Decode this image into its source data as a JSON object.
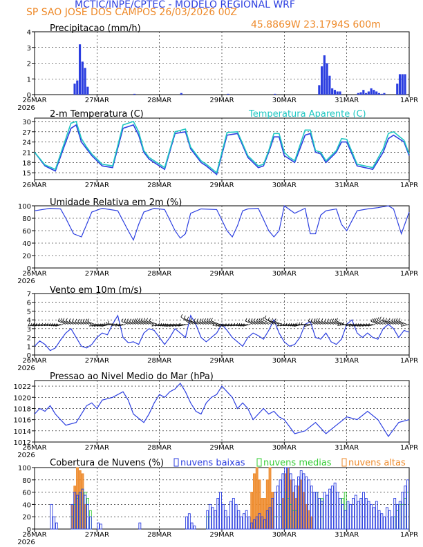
{
  "header": {
    "title": "MCTIC/INPE/CPTEC - MODELO REGIONAL WRF",
    "location_date": "SP SAO JOSE DOS CAMPOS   26/03/2026 00Z",
    "coords": "45.8869W 23.1794S 600m"
  },
  "colors": {
    "blue": "#2b3ee0",
    "cyan": "#1fc7c2",
    "green": "#33cc33",
    "orange": "#ee8a2a",
    "black": "#000000"
  },
  "chart_data": [
    {
      "id": "precip",
      "type": "bar",
      "title": "Precipitacao (mm/h)",
      "ylim": [
        0,
        4
      ],
      "yticks": [
        "0",
        "1",
        "2",
        "3",
        "4"
      ],
      "xlabels": [
        "26MAR",
        "27MAR",
        "28MAR",
        "29MAR",
        "30MAR",
        "31MAR",
        "1APR"
      ],
      "year": "2026",
      "x_hours": [
        15,
        16,
        17,
        18,
        19,
        20,
        38,
        56,
        74,
        92,
        109,
        110,
        111,
        112,
        113,
        114,
        115,
        116,
        117,
        124,
        125,
        126,
        127,
        128,
        129,
        130,
        131,
        132,
        133,
        134,
        139,
        140,
        141,
        142
      ],
      "values": [
        0.7,
        0.9,
        3.2,
        2.1,
        1.7,
        0.5,
        0.05,
        0.1,
        0.05,
        0.05,
        0.6,
        1.8,
        2.5,
        2.0,
        1.2,
        0.4,
        0.3,
        0.2,
        0.2,
        0.1,
        0.15,
        0.3,
        0.1,
        0.2,
        0.4,
        0.3,
        0.2,
        0.1,
        0.05,
        0.1,
        0.7,
        1.3,
        1.3,
        1.3
      ]
    },
    {
      "id": "temperature",
      "type": "line",
      "title": "2-m Temperatura (C)",
      "legend": "Temperatura Aparente (C)",
      "ylim": [
        13,
        31
      ],
      "yticks": [
        "15",
        "18",
        "21",
        "24",
        "27",
        "30"
      ],
      "xlabels": [
        "26MAR",
        "27MAR",
        "28MAR",
        "29MAR",
        "30MAR",
        "31MAR",
        "1APR"
      ],
      "series": [
        {
          "name": "Temperatura",
          "x": [
            0,
            4,
            8,
            12,
            14,
            16,
            18,
            20,
            22,
            26,
            30,
            34,
            38,
            40,
            42,
            44,
            46,
            50,
            54,
            58,
            60,
            62,
            64,
            66,
            70,
            74,
            78,
            82,
            84,
            86,
            88,
            90,
            92,
            94,
            96,
            98,
            100,
            104,
            106,
            108,
            110,
            112,
            116,
            118,
            120,
            124,
            130,
            134,
            136,
            138,
            142,
            144
          ],
          "values": [
            21,
            17,
            15.5,
            24,
            28,
            29,
            24,
            22,
            20,
            17,
            16.5,
            28,
            29,
            26,
            21,
            19,
            18,
            16,
            26.5,
            27,
            22,
            20,
            18,
            17,
            14.5,
            26,
            26.5,
            19.5,
            18,
            16.5,
            17,
            21,
            25.5,
            25.5,
            20,
            19,
            18,
            26,
            26.5,
            21,
            20.5,
            18,
            21,
            24,
            24,
            17,
            16,
            21,
            25,
            26,
            24,
            20
          ]
        },
        {
          "name": "Temperatura Aparente",
          "x": [
            0,
            4,
            8,
            12,
            14,
            16,
            18,
            20,
            22,
            26,
            30,
            34,
            38,
            40,
            42,
            44,
            46,
            50,
            54,
            58,
            60,
            62,
            64,
            66,
            70,
            74,
            78,
            82,
            84,
            86,
            88,
            90,
            92,
            94,
            96,
            98,
            100,
            104,
            106,
            108,
            110,
            112,
            116,
            118,
            120,
            124,
            130,
            134,
            136,
            138,
            142,
            144
          ],
          "values": [
            21,
            17.3,
            16,
            25,
            29.5,
            30,
            25,
            22.5,
            20.5,
            17.5,
            17,
            29,
            30,
            27,
            21.5,
            19.5,
            18.5,
            16.5,
            27,
            27.8,
            22.5,
            20.5,
            18.5,
            17.5,
            15,
            26.8,
            27,
            20,
            18.5,
            17,
            17.5,
            21.5,
            26.5,
            26.5,
            21,
            19.5,
            18.5,
            27.5,
            27.5,
            21.5,
            21,
            18.5,
            21.5,
            25,
            24.8,
            17.5,
            16.5,
            22,
            26.5,
            27,
            24.5,
            20.5
          ]
        }
      ]
    },
    {
      "id": "humidity",
      "type": "line",
      "title": "Umidade Relativa em 2m (%)",
      "ylim": [
        0,
        100
      ],
      "yticks": [
        "0",
        "20",
        "40",
        "60",
        "80",
        "100"
      ],
      "xlabels": [
        "26MAR",
        "27MAR",
        "28MAR",
        "29MAR",
        "30MAR",
        "31MAR",
        "1APR"
      ],
      "year": "2026",
      "series": [
        {
          "name": "Umidade",
          "x": [
            0,
            6,
            10,
            12,
            15,
            18,
            22,
            26,
            32,
            36,
            38,
            40,
            42,
            46,
            50,
            54,
            56,
            58,
            60,
            64,
            70,
            74,
            76,
            78,
            80,
            82,
            86,
            90,
            92,
            94,
            96,
            100,
            104,
            106,
            108,
            110,
            112,
            116,
            118,
            120,
            124,
            128,
            132,
            136,
            138,
            141,
            144
          ],
          "values": [
            92,
            96,
            95,
            80,
            55,
            50,
            90,
            96,
            92,
            60,
            45,
            70,
            90,
            96,
            94,
            60,
            48,
            55,
            88,
            95,
            94,
            60,
            50,
            68,
            92,
            95,
            96,
            60,
            50,
            60,
            100,
            88,
            96,
            55,
            55,
            85,
            92,
            95,
            70,
            60,
            92,
            95,
            97,
            100,
            95,
            55,
            90
          ]
        }
      ]
    },
    {
      "id": "wind",
      "type": "line",
      "title": "Vento em 10m (m/s)",
      "ylim": [
        0,
        7
      ],
      "yticks": [
        "0",
        "1",
        "2",
        "3",
        "4",
        "5",
        "6",
        "7"
      ],
      "xlabels": [
        "26MAR",
        "27MAR",
        "28MAR",
        "29MAR",
        "30MAR",
        "31MAR",
        "1APR"
      ],
      "year": "2026",
      "series": [
        {
          "name": "Velocidade",
          "x": [
            0,
            2,
            4,
            6,
            8,
            10,
            12,
            14,
            16,
            18,
            20,
            22,
            24,
            26,
            28,
            30,
            32,
            34,
            36,
            38,
            40,
            42,
            44,
            46,
            48,
            50,
            52,
            54,
            56,
            58,
            60,
            62,
            64,
            66,
            68,
            70,
            72,
            74,
            76,
            78,
            80,
            82,
            84,
            86,
            88,
            90,
            92,
            94,
            96,
            98,
            100,
            102,
            104,
            106,
            108,
            110,
            112,
            114,
            116,
            118,
            120,
            122,
            124,
            126,
            128,
            130,
            132,
            134,
            136,
            138,
            140,
            142,
            144
          ],
          "values": [
            1,
            1.6,
            1.2,
            0.5,
            0.8,
            1.7,
            2.5,
            3,
            2,
            1,
            0.8,
            1.2,
            2,
            2.5,
            2.3,
            3.5,
            4.5,
            2,
            1.4,
            1.5,
            1.2,
            2.5,
            3,
            2.8,
            2,
            1.2,
            2,
            3,
            2.5,
            2,
            4.5,
            3.5,
            2,
            1.5,
            2,
            2.5,
            3.5,
            2.8,
            2,
            1.5,
            1,
            2,
            2.5,
            2.2,
            1.8,
            2.8,
            4,
            2.5,
            1.5,
            1,
            1.2,
            2,
            3.5,
            3.8,
            2,
            1.8,
            2.5,
            1.5,
            1.2,
            1.8,
            3.5,
            4,
            2.5,
            2,
            2.5,
            2,
            1.8,
            3,
            3.5,
            3,
            2,
            2.8,
            2.6
          ]
        }
      ],
      "barbs_level": 3.5
    },
    {
      "id": "pressure",
      "type": "line",
      "title": "Pressao ao Nivel Medio do Mar (hPa)",
      "ylim": [
        1012,
        1023
      ],
      "yticks": [
        "1012",
        "1014",
        "1016",
        "1018",
        "1020",
        "1022"
      ],
      "xlabels": [
        "26MAR",
        "27MAR",
        "28MAR",
        "29MAR",
        "30MAR",
        "31MAR",
        "1APR"
      ],
      "year": "2026",
      "series": [
        {
          "name": "Pressao",
          "x": [
            0,
            2,
            4,
            6,
            8,
            10,
            12,
            16,
            20,
            22,
            24,
            26,
            30,
            34,
            36,
            38,
            42,
            44,
            46,
            48,
            50,
            52,
            54,
            56,
            58,
            60,
            62,
            64,
            66,
            68,
            70,
            72,
            74,
            76,
            78,
            80,
            82,
            84,
            86,
            88,
            90,
            92,
            94,
            96,
            100,
            104,
            108,
            112,
            116,
            120,
            124,
            128,
            132,
            136,
            140,
            144
          ],
          "values": [
            1017,
            1018,
            1017.5,
            1018.5,
            1017,
            1016,
            1015,
            1015.5,
            1018.5,
            1019,
            1018,
            1019.5,
            1020,
            1021,
            1019.5,
            1017,
            1015.5,
            1017,
            1019,
            1020.5,
            1020,
            1021,
            1021.5,
            1022.5,
            1021,
            1019,
            1017.5,
            1017,
            1019,
            1020,
            1020.5,
            1022,
            1021,
            1020,
            1018,
            1019,
            1018,
            1016,
            1017,
            1018,
            1017,
            1017.5,
            1016.5,
            1016,
            1013.5,
            1014,
            1015.5,
            1013.5,
            1015,
            1016.5,
            1016,
            1017.5,
            1016,
            1013,
            1015.5,
            1016
          ]
        }
      ]
    },
    {
      "id": "clouds",
      "type": "bar",
      "title": "Cobertura de Nuvens (%)",
      "ylim": [
        0,
        100
      ],
      "yticks": [
        "0",
        "20",
        "40",
        "60",
        "80",
        "100"
      ],
      "xlabels": [
        "26MAR",
        "27MAR",
        "28MAR",
        "29MAR",
        "30MAR",
        "31MAR",
        "1APR"
      ],
      "year": "2026",
      "legend": [
        "nuvens baixas",
        "nuvens medias",
        "nuvens altas"
      ],
      "series": [
        {
          "name": "nuvens baixas",
          "x": [
            6,
            7,
            8,
            14,
            15,
            16,
            17,
            18,
            19,
            20,
            21,
            24,
            25,
            40,
            58,
            59,
            60,
            61,
            66,
            67,
            68,
            69,
            70,
            71,
            72,
            73,
            74,
            75,
            76,
            77,
            78,
            79,
            80,
            81,
            82,
            83,
            84,
            85,
            86,
            87,
            88,
            89,
            90,
            91,
            92,
            93,
            94,
            95,
            96,
            97,
            98,
            99,
            100,
            101,
            102,
            103,
            104,
            105,
            106,
            107,
            108,
            109,
            110,
            111,
            112,
            113,
            114,
            115,
            116,
            117,
            118,
            119,
            120,
            121,
            122,
            123,
            124,
            125,
            126,
            127,
            128,
            129,
            130,
            131,
            132,
            133,
            134,
            135,
            136,
            137,
            138,
            139,
            140,
            141,
            142,
            143
          ],
          "values": [
            40,
            20,
            10,
            40,
            60,
            55,
            60,
            65,
            55,
            40,
            20,
            10,
            8,
            10,
            20,
            25,
            10,
            5,
            30,
            40,
            35,
            30,
            50,
            60,
            40,
            30,
            20,
            45,
            50,
            40,
            30,
            20,
            25,
            30,
            20,
            10,
            15,
            20,
            25,
            20,
            15,
            30,
            35,
            50,
            60,
            70,
            80,
            90,
            100,
            100,
            90,
            80,
            70,
            85,
            95,
            90,
            85,
            80,
            70,
            60,
            60,
            50,
            45,
            60,
            55,
            65,
            70,
            75,
            60,
            50,
            40,
            30,
            45,
            40,
            50,
            55,
            45,
            50,
            60,
            50,
            45,
            40,
            35,
            45,
            30,
            25,
            20,
            35,
            30,
            20,
            50,
            40,
            45,
            60,
            70,
            80
          ]
        },
        {
          "name": "nuvens medias",
          "x": [
            14,
            15,
            16,
            17,
            18,
            19,
            20,
            21,
            66,
            67,
            92,
            94,
            96,
            97,
            98,
            99,
            100,
            108,
            110,
            118,
            119,
            138,
            139,
            140,
            141,
            142,
            143
          ],
          "values": [
            20,
            40,
            50,
            60,
            65,
            60,
            50,
            30,
            20,
            20,
            20,
            40,
            60,
            50,
            40,
            30,
            30,
            60,
            50,
            50,
            60,
            20,
            30,
            40,
            40,
            50,
            60
          ]
        },
        {
          "name": "nuvens altas",
          "x": [
            14,
            15,
            16,
            17,
            18,
            19,
            83,
            84,
            85,
            86,
            87,
            88,
            89,
            90,
            91,
            95,
            96,
            97,
            98,
            99,
            100,
            101,
            102,
            103,
            104,
            105,
            106
          ],
          "values": [
            40,
            70,
            100,
            95,
            90,
            40,
            60,
            90,
            100,
            80,
            50,
            50,
            80,
            100,
            60,
            50,
            90,
            100,
            80,
            60,
            50,
            70,
            80,
            60,
            40,
            30,
            20
          ]
        }
      ]
    }
  ]
}
